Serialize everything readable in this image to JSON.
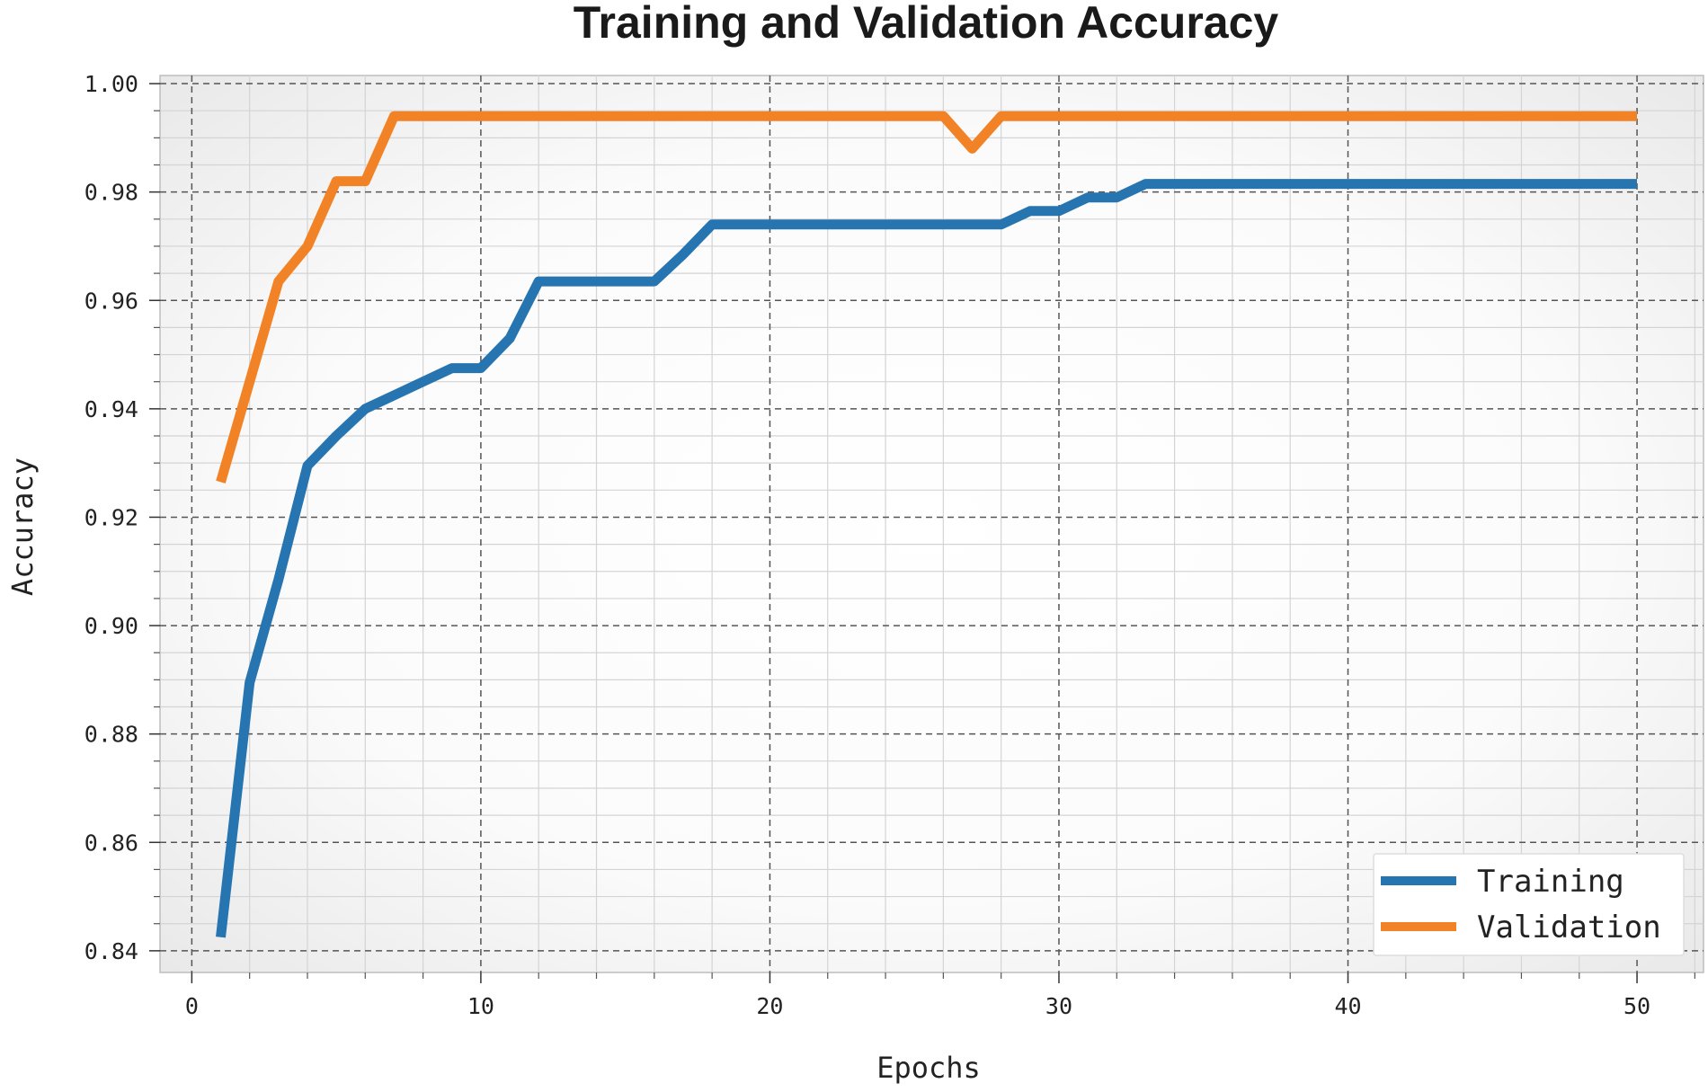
{
  "chart_data": {
    "type": "line",
    "title": "Training and Validation Accuracy",
    "xlabel": "Epochs",
    "ylabel": "Accuracy",
    "xlim": [
      -1.1,
      52.3
    ],
    "ylim": [
      0.836,
      1.0015
    ],
    "xticks": [
      0,
      10,
      20,
      30,
      40,
      50
    ],
    "xtick_labels": [
      "0",
      "10",
      "20",
      "30",
      "40",
      "50"
    ],
    "yticks": [
      0.84,
      0.86,
      0.88,
      0.9,
      0.92,
      0.94,
      0.96,
      0.98,
      1.0
    ],
    "ytick_labels": [
      "0.84",
      "0.86",
      "0.88",
      "0.90",
      "0.92",
      "0.94",
      "0.96",
      "0.98",
      "1.00"
    ],
    "grid": true,
    "legend_position": "bottom-right",
    "x": [
      1,
      2,
      3,
      4,
      5,
      6,
      7,
      8,
      9,
      10,
      11,
      12,
      13,
      14,
      15,
      16,
      17,
      18,
      19,
      20,
      21,
      22,
      23,
      24,
      25,
      26,
      27,
      28,
      29,
      30,
      31,
      32,
      33,
      34,
      35,
      36,
      37,
      38,
      39,
      40,
      41,
      42,
      43,
      44,
      45,
      46,
      47,
      48,
      49,
      50
    ],
    "series": [
      {
        "name": "Training",
        "color": "#2674b0",
        "values": [
          0.8425,
          0.8895,
          0.9085,
          0.9295,
          0.935,
          0.94,
          0.9425,
          0.945,
          0.9475,
          0.9475,
          0.953,
          0.9635,
          0.9635,
          0.9635,
          0.9635,
          0.9635,
          0.9685,
          0.974,
          0.974,
          0.974,
          0.974,
          0.974,
          0.974,
          0.974,
          0.974,
          0.974,
          0.974,
          0.974,
          0.9765,
          0.9765,
          0.979,
          0.979,
          0.9815,
          0.9815,
          0.9815,
          0.9815,
          0.9815,
          0.9815,
          0.9815,
          0.9815,
          0.9815,
          0.9815,
          0.9815,
          0.9815,
          0.9815,
          0.9815,
          0.9815,
          0.9815,
          0.9815,
          0.9815
        ]
      },
      {
        "name": "Validation",
        "color": "#f28226",
        "values": [
          0.9265,
          0.945,
          0.9635,
          0.97,
          0.982,
          0.982,
          0.994,
          0.994,
          0.994,
          0.994,
          0.994,
          0.994,
          0.994,
          0.994,
          0.994,
          0.994,
          0.994,
          0.994,
          0.994,
          0.994,
          0.994,
          0.994,
          0.994,
          0.994,
          0.994,
          0.994,
          0.988,
          0.994,
          0.994,
          0.994,
          0.994,
          0.994,
          0.994,
          0.994,
          0.994,
          0.994,
          0.994,
          0.994,
          0.994,
          0.994,
          0.994,
          0.994,
          0.994,
          0.994,
          0.994,
          0.994,
          0.994,
          0.994,
          0.994,
          0.994
        ]
      }
    ]
  }
}
